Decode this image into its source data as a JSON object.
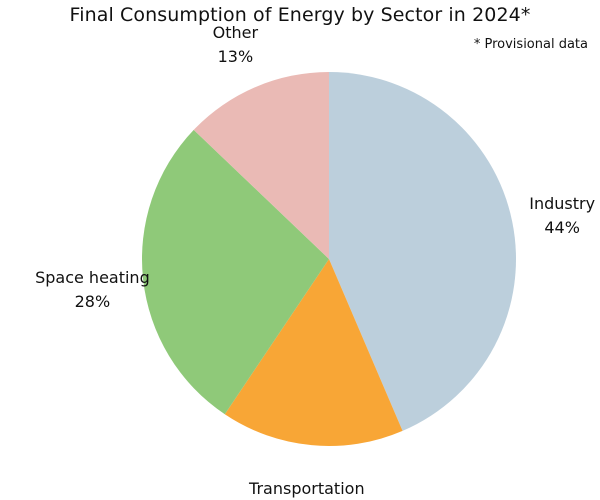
{
  "chart_data": {
    "type": "pie",
    "title": "Final Consumption of Energy by Sector in 2024*",
    "note": "* Provisional data",
    "slices": [
      {
        "name": "Industry",
        "value": 44,
        "value_label": "44%",
        "color": "#bccfdc"
      },
      {
        "name": "Transportation",
        "value": 16,
        "value_label": "16%",
        "color": "#f8a636"
      },
      {
        "name": "Space heating",
        "value": 28,
        "value_label": "28%",
        "color": "#8fc979"
      },
      {
        "name": "Other",
        "value": 13,
        "value_label": "13%",
        "color": "#eabab5"
      }
    ]
  }
}
